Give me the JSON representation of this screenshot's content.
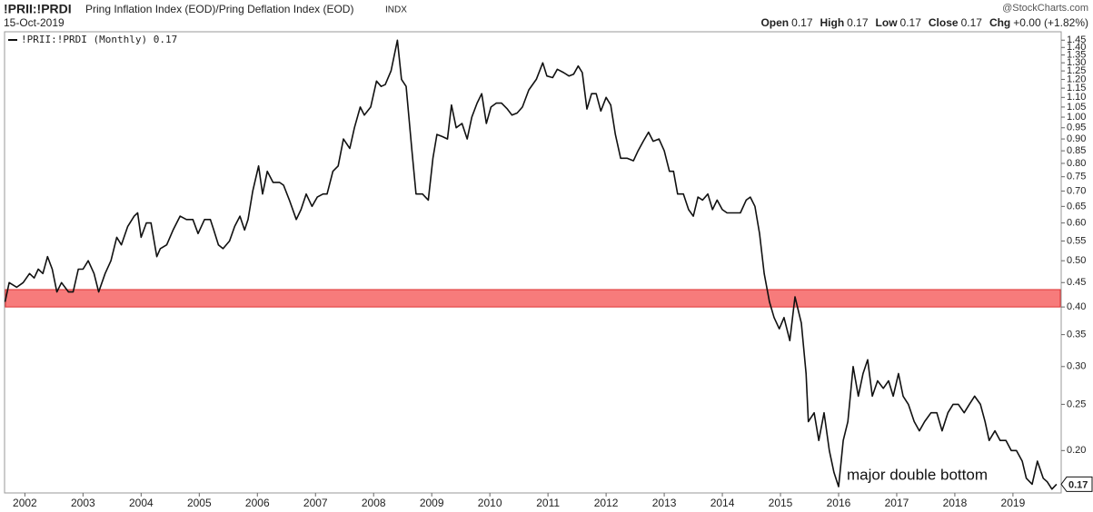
{
  "header": {
    "symbol": "!PRII:!PRDI",
    "name": "Pring Inflation Index (EOD)/Pring Deflation Index (EOD)",
    "exchange": "INDX",
    "date": "15-Oct-2019",
    "brand": "@StockCharts.com",
    "quote": [
      {
        "label": "Open",
        "value": "0.17"
      },
      {
        "label": "High",
        "value": "0.17"
      },
      {
        "label": "Low",
        "value": "0.17"
      },
      {
        "label": "Close",
        "value": "0.17"
      },
      {
        "label": "Chg",
        "value": "+0.00 (+1.82%)"
      }
    ]
  },
  "chart_data": {
    "type": "line",
    "log_scale": true,
    "x": [
      2001.66,
      2001.73,
      2001.86,
      2001.97,
      2002.08,
      2002.16,
      2002.23,
      2002.31,
      2002.39,
      2002.47,
      2002.55,
      2002.63,
      2002.75,
      2002.83,
      2002.92,
      2003.0,
      2003.09,
      2003.19,
      2003.27,
      2003.38,
      2003.48,
      2003.58,
      2003.66,
      2003.77,
      2003.88,
      2003.94,
      2004.0,
      2004.09,
      2004.17,
      2004.27,
      2004.33,
      2004.44,
      2004.55,
      2004.67,
      2004.78,
      2004.89,
      2004.98,
      2005.09,
      2005.19,
      2005.25,
      2005.33,
      2005.41,
      2005.52,
      2005.61,
      2005.7,
      2005.78,
      2005.84,
      2005.92,
      2006.02,
      2006.09,
      2006.17,
      2006.27,
      2006.38,
      2006.45,
      2006.55,
      2006.67,
      2006.75,
      2006.84,
      2006.94,
      2007.03,
      2007.13,
      2007.2,
      2007.3,
      2007.39,
      2007.48,
      2007.59,
      2007.67,
      2007.77,
      2007.84,
      2007.95,
      2008.05,
      2008.13,
      2008.2,
      2008.3,
      2008.41,
      2008.48,
      2008.56,
      2008.66,
      2008.73,
      2008.84,
      2008.94,
      2009.02,
      2009.09,
      2009.19,
      2009.27,
      2009.34,
      2009.42,
      2009.52,
      2009.61,
      2009.69,
      2009.78,
      2009.86,
      2009.94,
      2010.02,
      2010.11,
      2010.2,
      2010.3,
      2010.38,
      2010.47,
      2010.56,
      2010.67,
      2010.8,
      2010.91,
      2010.98,
      2011.08,
      2011.16,
      2011.27,
      2011.36,
      2011.44,
      2011.52,
      2011.59,
      2011.67,
      2011.75,
      2011.83,
      2011.91,
      2012.0,
      2012.08,
      2012.16,
      2012.25,
      2012.36,
      2012.47,
      2012.55,
      2012.64,
      2012.73,
      2012.81,
      2012.91,
      2013.0,
      2013.09,
      2013.16,
      2013.23,
      2013.33,
      2013.42,
      2013.5,
      2013.58,
      2013.66,
      2013.75,
      2013.83,
      2013.91,
      2014.0,
      2014.08,
      2014.2,
      2014.31,
      2014.41,
      2014.48,
      2014.56,
      2014.64,
      2014.72,
      2014.81,
      2014.89,
      2014.98,
      2015.06,
      2015.16,
      2015.25,
      2015.36,
      2015.44,
      2015.48,
      2015.58,
      2015.66,
      2015.75,
      2015.84,
      2015.92,
      2016.0,
      2016.08,
      2016.16,
      2016.25,
      2016.34,
      2016.42,
      2016.5,
      2016.58,
      2016.67,
      2016.77,
      2016.86,
      2016.94,
      2017.03,
      2017.11,
      2017.2,
      2017.3,
      2017.39,
      2017.48,
      2017.59,
      2017.69,
      2017.78,
      2017.88,
      2017.97,
      2018.06,
      2018.16,
      2018.25,
      2018.34,
      2018.44,
      2018.52,
      2018.59,
      2018.69,
      2018.78,
      2018.88,
      2018.97,
      2019.06,
      2019.16,
      2019.23,
      2019.33,
      2019.42,
      2019.52,
      2019.59,
      2019.67,
      2019.75
    ],
    "series": [
      {
        "name": "!PRII:!PRDI (Monthly) 0.17",
        "color": "#111111",
        "values": [
          0.41,
          0.45,
          0.44,
          0.45,
          0.47,
          0.46,
          0.48,
          0.47,
          0.51,
          0.48,
          0.43,
          0.45,
          0.43,
          0.43,
          0.48,
          0.48,
          0.5,
          0.47,
          0.43,
          0.47,
          0.5,
          0.56,
          0.54,
          0.59,
          0.62,
          0.63,
          0.56,
          0.6,
          0.6,
          0.51,
          0.53,
          0.54,
          0.58,
          0.62,
          0.61,
          0.61,
          0.57,
          0.61,
          0.61,
          0.58,
          0.54,
          0.53,
          0.55,
          0.59,
          0.62,
          0.58,
          0.61,
          0.7,
          0.79,
          0.69,
          0.77,
          0.73,
          0.73,
          0.72,
          0.67,
          0.61,
          0.64,
          0.69,
          0.65,
          0.68,
          0.69,
          0.69,
          0.77,
          0.79,
          0.9,
          0.86,
          0.95,
          1.05,
          1.01,
          1.05,
          1.19,
          1.16,
          1.17,
          1.25,
          1.45,
          1.2,
          1.16,
          0.85,
          0.69,
          0.69,
          0.67,
          0.82,
          0.92,
          0.91,
          0.9,
          1.06,
          0.95,
          0.97,
          0.9,
          1.0,
          1.07,
          1.12,
          0.97,
          1.05,
          1.07,
          1.07,
          1.04,
          1.01,
          1.02,
          1.05,
          1.14,
          1.2,
          1.3,
          1.22,
          1.21,
          1.26,
          1.24,
          1.22,
          1.23,
          1.28,
          1.24,
          1.04,
          1.12,
          1.12,
          1.03,
          1.1,
          1.06,
          0.92,
          0.82,
          0.82,
          0.81,
          0.85,
          0.89,
          0.93,
          0.89,
          0.9,
          0.85,
          0.77,
          0.77,
          0.69,
          0.69,
          0.64,
          0.62,
          0.68,
          0.67,
          0.69,
          0.64,
          0.67,
          0.64,
          0.63,
          0.63,
          0.63,
          0.67,
          0.68,
          0.65,
          0.57,
          0.47,
          0.41,
          0.38,
          0.36,
          0.38,
          0.34,
          0.42,
          0.37,
          0.29,
          0.23,
          0.24,
          0.21,
          0.24,
          0.2,
          0.18,
          0.168,
          0.21,
          0.23,
          0.3,
          0.26,
          0.29,
          0.31,
          0.26,
          0.28,
          0.27,
          0.28,
          0.26,
          0.29,
          0.26,
          0.25,
          0.23,
          0.22,
          0.23,
          0.24,
          0.24,
          0.22,
          0.24,
          0.25,
          0.25,
          0.24,
          0.25,
          0.26,
          0.25,
          0.23,
          0.21,
          0.22,
          0.21,
          0.21,
          0.2,
          0.2,
          0.19,
          0.175,
          0.17,
          0.19,
          0.175,
          0.172,
          0.166,
          0.17
        ]
      }
    ],
    "xlim": [
      2001.65,
      2019.83
    ],
    "xticks": [
      2002,
      2003,
      2004,
      2005,
      2006,
      2007,
      2008,
      2009,
      2010,
      2011,
      2012,
      2013,
      2014,
      2015,
      2016,
      2017,
      2018,
      2019
    ],
    "ylim": [
      0.163,
      1.51
    ],
    "yticks": [
      {
        "value": 0.2,
        "label": "0.20"
      },
      0.25,
      {
        "value": 0.3,
        "label": "0.30"
      },
      0.35,
      {
        "value": 0.4,
        "label": "0.40"
      },
      0.45,
      {
        "value": 0.5,
        "label": "0.50"
      },
      0.55,
      {
        "value": 0.6,
        "label": "0.60"
      },
      0.65,
      {
        "value": 0.7,
        "label": "0.70"
      },
      0.75,
      {
        "value": 0.8,
        "label": "0.80"
      },
      0.85,
      {
        "value": 0.9,
        "label": "0.90"
      },
      0.95,
      {
        "value": 1.0,
        "label": "1.00"
      },
      1.05,
      {
        "value": 1.1,
        "label": "1.10"
      },
      1.15,
      {
        "value": 1.2,
        "label": "1.20"
      },
      1.25,
      {
        "value": 1.3,
        "label": "1.30"
      },
      1.35,
      {
        "value": 1.4,
        "label": "1.40"
      },
      1.45
    ],
    "band": {
      "range": [
        0.4,
        0.435
      ],
      "color": "#f77b7b"
    },
    "annotation": "major double bottom"
  }
}
